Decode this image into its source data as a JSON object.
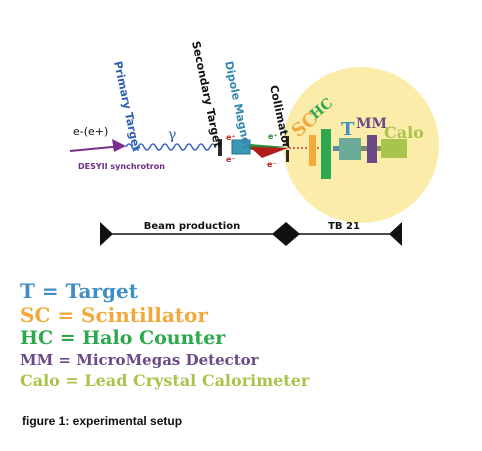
{
  "labels": {
    "beam_in": "e-(e+)",
    "synchrotron": "DESYII synchrotron",
    "primary_target": "Primary Target",
    "gamma": "γ",
    "secondary_target": "Secondary Target",
    "dipole_magnet": "Dipole Magnet",
    "collimator": "Collimator",
    "e_plus": "e⁺",
    "e_minus": "e⁻",
    "e_plus_2": "e⁺",
    "e_minus_2": "e⁻",
    "sc": "SC",
    "hc": "HC",
    "t": "T",
    "mm": "MM",
    "calo": "Calo",
    "beam_production": "Beam production",
    "tb21": "TB 21"
  },
  "legend": [
    {
      "abbr": "T",
      "text": "T = Target"
    },
    {
      "abbr": "SC",
      "text": "SC = Scintillator"
    },
    {
      "abbr": "HC",
      "text": "HC = Halo Counter"
    },
    {
      "abbr": "MM",
      "text": "MM = MicroMegas Detector"
    },
    {
      "abbr": "Calo",
      "text": "Calo = Lead Crystal Calorimeter"
    }
  ],
  "caption": "figure 1: experimental setup",
  "colors": {
    "t": "#3f8ec4",
    "sc": "#f2a83a",
    "hc": "#2da84f",
    "mm": "#6a4a86",
    "calo": "#a8c44a",
    "circle": "#fbecaa",
    "beam_arrow": "#7a2e8c",
    "photon": "#3a66c4"
  }
}
